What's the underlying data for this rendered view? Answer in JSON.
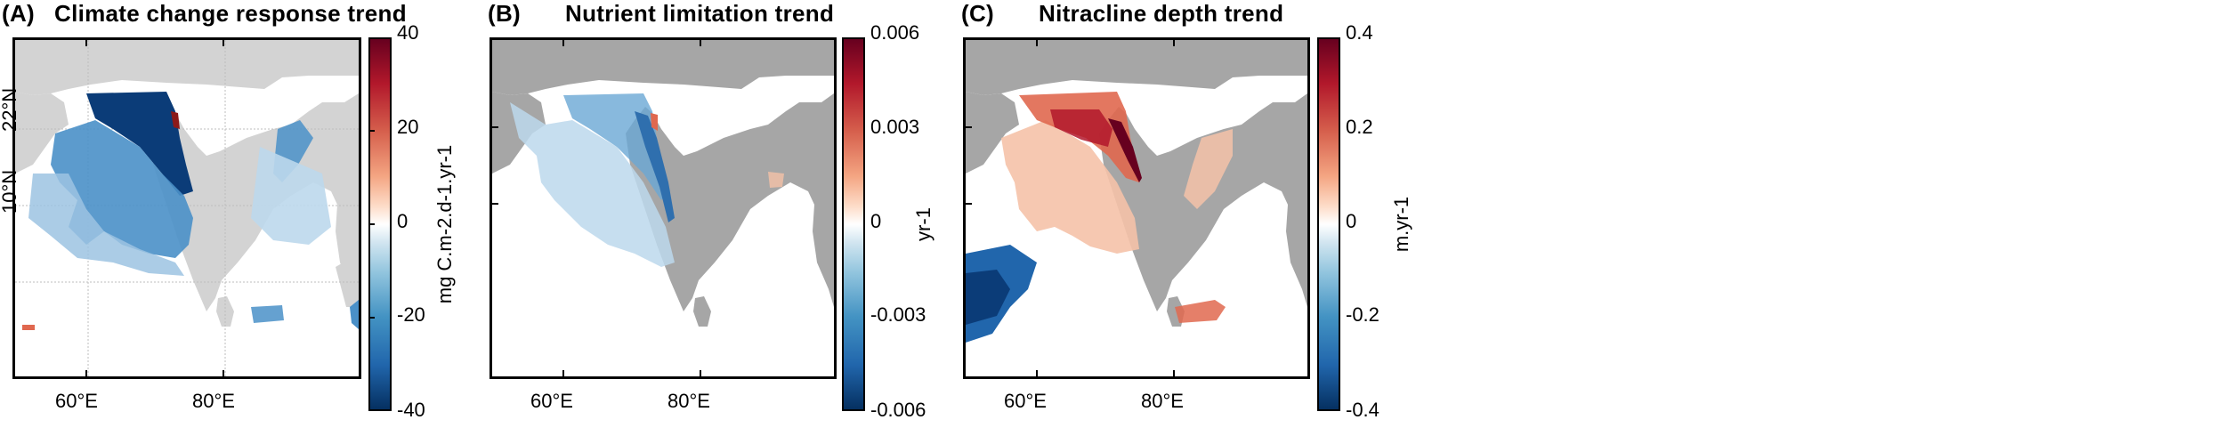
{
  "panels": [
    {
      "letter": "(A)",
      "title": "Climate change response trend",
      "colorbar": {
        "ticks": [
          "40",
          "20",
          "0",
          "-20",
          "-40"
        ],
        "label": "mg C.m-2.d-1.yr-1",
        "range": [
          -40,
          40
        ]
      },
      "lat_ticks": [
        "22°N",
        "10°N"
      ],
      "lon_ticks": [
        "60°E",
        "80°E"
      ],
      "grid": true
    },
    {
      "letter": "(B)",
      "title": "Nutrient limitation trend",
      "colorbar": {
        "ticks": [
          "0.006",
          "0.003",
          "0",
          "-0.003",
          "-0.006"
        ],
        "label": "yr-1",
        "range": [
          -0.006,
          0.006
        ]
      },
      "lat_ticks": [],
      "lon_ticks": [
        "60°E",
        "80°E"
      ],
      "grid": false
    },
    {
      "letter": "(C)",
      "title": "Nitracline depth trend",
      "colorbar": {
        "ticks": [
          "0.4",
          "0.2",
          "0",
          "-0.2",
          "-0.4"
        ],
        "label": "m.yr-1",
        "range": [
          -0.4,
          0.4
        ]
      },
      "lat_ticks": [],
      "lon_ticks": [
        "60°E",
        "80°E"
      ],
      "grid": false
    }
  ],
  "colors": {
    "land": "#d3d3d3",
    "land_dark": "#a6a6a6",
    "ocean": "#ffffff",
    "strong_negative": "#0b3c78",
    "negative": "#4a90c8",
    "weak_negative": "#bcd8ec",
    "weak_positive": "#f5c2a8",
    "positive": "#e0684f",
    "strong_positive": "#8b1a1a"
  }
}
